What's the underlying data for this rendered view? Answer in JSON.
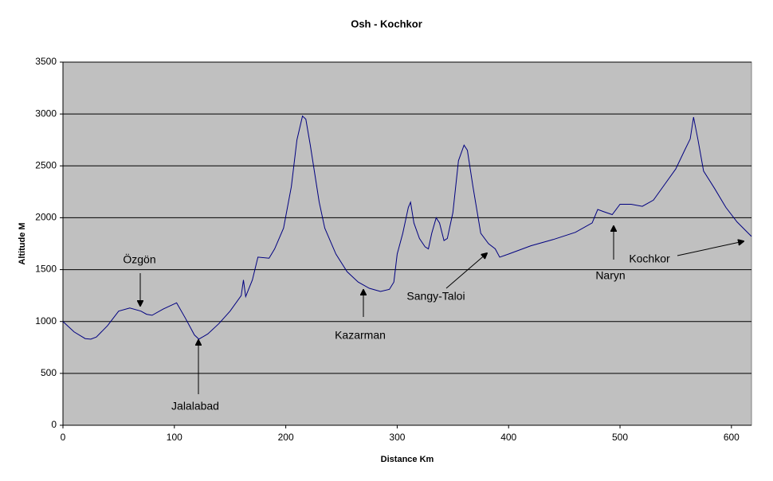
{
  "chart_data": {
    "type": "line",
    "title": "Osh - Kochkor",
    "x_label": "Distance Km",
    "y_label": "Altitude M",
    "xlim": [
      0,
      618
    ],
    "ylim": [
      0,
      3500
    ],
    "xticks": [
      0,
      100,
      200,
      300,
      400,
      500,
      600
    ],
    "yticks": [
      0,
      500,
      1000,
      1500,
      2000,
      2500,
      3000,
      3500
    ],
    "grid": true,
    "series": [
      {
        "name": "Altitude",
        "color": "#000080",
        "x": [
          0,
          10,
          20,
          25,
          30,
          40,
          50,
          60,
          70,
          75,
          80,
          90,
          100,
          102,
          110,
          118,
          122,
          130,
          140,
          150,
          160,
          162,
          164,
          170,
          175,
          185,
          190,
          198,
          205,
          210,
          215,
          218,
          222,
          230,
          235,
          245,
          255,
          265,
          275,
          285,
          293,
          297,
          300,
          305,
          310,
          312,
          315,
          320,
          325,
          328,
          331,
          335,
          338,
          342,
          345,
          350,
          355,
          360,
          363,
          368,
          375,
          382,
          388,
          392,
          400,
          420,
          440,
          460,
          475,
          480,
          485,
          493,
          500,
          510,
          520,
          530,
          540,
          550,
          558,
          563,
          566,
          570,
          575,
          585,
          595,
          605,
          618
        ],
        "values": [
          1000,
          900,
          835,
          830,
          850,
          960,
          1100,
          1130,
          1100,
          1070,
          1060,
          1120,
          1170,
          1180,
          1030,
          870,
          830,
          880,
          980,
          1100,
          1250,
          1400,
          1240,
          1400,
          1620,
          1610,
          1700,
          1900,
          2300,
          2750,
          2980,
          2950,
          2700,
          2150,
          1900,
          1650,
          1480,
          1380,
          1320,
          1290,
          1310,
          1380,
          1650,
          1850,
          2100,
          2150,
          1950,
          1800,
          1720,
          1700,
          1850,
          2000,
          1950,
          1780,
          1800,
          2050,
          2550,
          2700,
          2650,
          2300,
          1850,
          1750,
          1700,
          1620,
          1650,
          1730,
          1790,
          1860,
          1950,
          2080,
          2060,
          2030,
          2130,
          2130,
          2110,
          2170,
          2320,
          2470,
          2650,
          2760,
          2970,
          2750,
          2450,
          2280,
          2100,
          1960,
          1820
        ]
      }
    ],
    "annotations": [
      {
        "text": "Özgön",
        "x": 70,
        "y": 1150
      },
      {
        "text": "Jalalabad",
        "x": 122,
        "y": 830
      },
      {
        "text": "Kazarman",
        "x": 270,
        "y": 1320
      },
      {
        "text": "Sangy-Taloi",
        "x": 382,
        "y": 1670
      },
      {
        "text": "Naryn",
        "x": 494,
        "y": 1930
      },
      {
        "text": "Kochkor",
        "x": 612,
        "y": 1790
      }
    ]
  }
}
